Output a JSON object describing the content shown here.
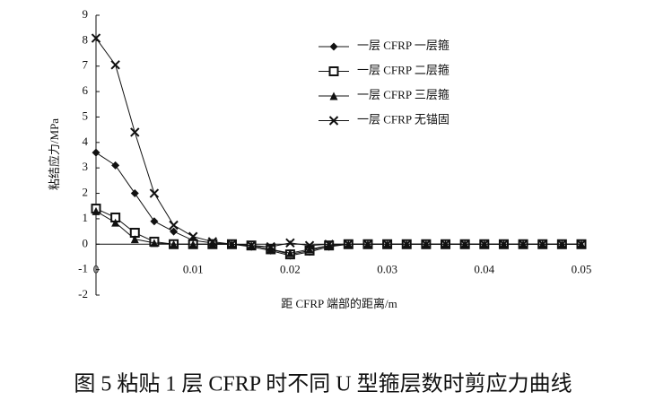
{
  "chart_data": {
    "type": "line",
    "x_label": "距 CFRP 端部的距离/m",
    "y_label": "粘结应力/MPa",
    "caption": "图 5  粘贴 1 层 CFRP 时不同 U 型箍层数时剪应力曲线",
    "x": [
      0,
      0.002,
      0.004,
      0.006,
      0.008,
      0.01,
      0.012,
      0.014,
      0.016,
      0.018,
      0.02,
      0.022,
      0.024,
      0.026,
      0.028,
      0.03,
      0.032,
      0.034,
      0.036,
      0.038,
      0.04,
      0.042,
      0.044,
      0.046,
      0.048,
      0.05
    ],
    "series": [
      {
        "name": "一层 CFRP 一层箍",
        "color": "#111111",
        "marker": "diamond",
        "values": [
          3.6,
          3.1,
          2.0,
          0.9,
          0.5,
          0.15,
          0.05,
          0,
          -0.1,
          -0.25,
          -0.45,
          -0.3,
          -0.1,
          0,
          0,
          0,
          0,
          0,
          0,
          0,
          0,
          0,
          0,
          0,
          0,
          0
        ]
      },
      {
        "name": "一层 CFRP 二层箍",
        "color": "#111111",
        "marker": "square",
        "values": [
          1.4,
          1.05,
          0.45,
          0.1,
          0,
          0,
          0,
          0,
          -0.05,
          -0.2,
          -0.4,
          -0.25,
          -0.05,
          0,
          0,
          0,
          0,
          0,
          0,
          0,
          0,
          0,
          0,
          0,
          0,
          0
        ]
      },
      {
        "name": "一层 CFRP 三层箍",
        "color": "#111111",
        "marker": "triangle",
        "values": [
          1.3,
          0.85,
          0.2,
          0.05,
          0,
          0,
          0,
          0,
          -0.05,
          -0.2,
          -0.35,
          -0.2,
          -0.05,
          0,
          0,
          0,
          0,
          0,
          0,
          0,
          0,
          0,
          0,
          0,
          0,
          0
        ]
      },
      {
        "name": "一层 CFRP 无锚固",
        "color": "#111111",
        "marker": "cross",
        "values": [
          8.1,
          7.05,
          4.4,
          2.0,
          0.75,
          0.3,
          0.1,
          0,
          -0.05,
          -0.1,
          0.05,
          -0.05,
          0,
          0,
          0,
          0,
          0,
          0,
          0,
          0,
          0,
          0,
          0,
          0,
          0,
          0
        ]
      }
    ],
    "xlim": [
      0,
      0.05
    ],
    "xticks": [
      0,
      0.01,
      0.02,
      0.03,
      0.04,
      0.05
    ],
    "ylim": [
      -2,
      9
    ],
    "yticks": [
      -2,
      -1,
      0,
      1,
      2,
      3,
      4,
      5,
      6,
      7,
      8,
      9
    ],
    "legend": "top-right",
    "grid": false
  }
}
